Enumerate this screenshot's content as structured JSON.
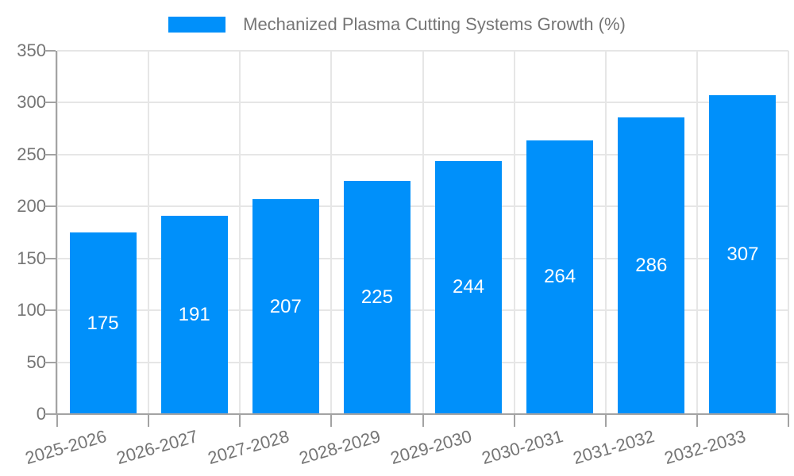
{
  "legend": {
    "label": "Mechanized Plasma Cutting Systems Growth (%)"
  },
  "chart_data": {
    "type": "bar",
    "title": "Mechanized Plasma Cutting Systems Growth (%)",
    "categories": [
      "2025-2026",
      "2026-2027",
      "2027-2028",
      "2028-2029",
      "2029-2030",
      "2030-2031",
      "2031-2032",
      "2032-2033"
    ],
    "values": [
      175,
      191,
      207,
      225,
      244,
      264,
      286,
      307
    ],
    "xlabel": "",
    "ylabel": "",
    "ylim": [
      0,
      350
    ],
    "yticks": [
      0,
      50,
      100,
      150,
      200,
      250,
      300,
      350
    ],
    "grid": true,
    "legend_position": "top",
    "value_labels_inside_bars": true
  },
  "colors": {
    "bar": "#0090fa",
    "text": "#757575",
    "grid": "#e6e6e6",
    "axis": "#a3a3a3",
    "value_label": "#ffffff",
    "background": "#ffffff"
  }
}
